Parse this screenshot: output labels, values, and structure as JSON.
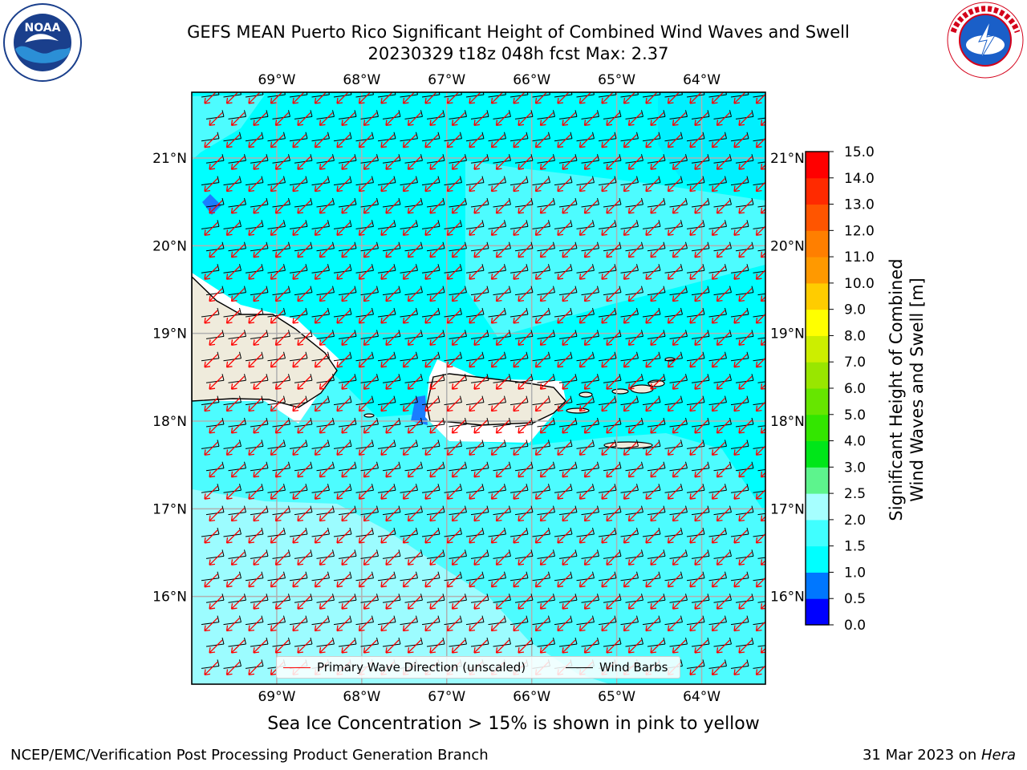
{
  "header": {
    "title_line1": "GEFS MEAN Puerto Rico Significant Height of Combined Wind Waves and Swell",
    "title_line2": "20230329 t18z 048h fcst   Max: 2.37"
  },
  "logos": {
    "left": {
      "text": "NOAA",
      "ring_text": "NATIONAL OCEANIC AND ATMOSPHERIC ADMINISTRATION · U.S. DEPARTMENT OF COMMERCE"
    },
    "right": {
      "ring_text": "NATIONAL WEATHER SERVICE"
    }
  },
  "footer": {
    "subtitle": "Sea Ice Concentration > 15% is shown in pink to yellow",
    "left": "NCEP/EMC/Verification Post Processing Product Generation Branch",
    "right_prefix": "31 Mar 2023 on ",
    "right_host": "Hera"
  },
  "legend": {
    "wave_label": "Primary Wave Direction (unscaled)",
    "barb_label": "Wind Barbs",
    "wave_color": "#ff0000",
    "barb_color": "#000000"
  },
  "chart_data": {
    "type": "heatmap",
    "title": "GEFS MEAN Puerto Rico Significant Height of Combined Wind Waves and Swell",
    "map": {
      "lon_range": [
        -70.0,
        -63.25
      ],
      "lat_range": [
        15.0,
        21.75
      ],
      "lon_ticks": [
        "69°W",
        "68°W",
        "67°W",
        "66°W",
        "65°W",
        "64°W"
      ],
      "lon_tick_values": [
        -69,
        -68,
        -67,
        -66,
        -65,
        -64
      ],
      "lat_ticks": [
        "16°N",
        "17°N",
        "18°N",
        "19°N",
        "20°N",
        "21°N"
      ],
      "lat_tick_values": [
        16,
        17,
        18,
        19,
        20,
        21
      ],
      "grid": true,
      "ocean_color": "#00ffff",
      "land_color": "#efebdc"
    },
    "colorbar": {
      "label": "Significant Height of Combined Wind Waves and Swell [m]",
      "label_line1": "Significant Height of Combined",
      "label_line2": "Wind Waves and Swell [m]",
      "ticks": [
        "0.0",
        "0.5",
        "1.0",
        "1.5",
        "2.0",
        "2.5",
        "3.0",
        "4.0",
        "5.0",
        "6.0",
        "7.0",
        "8.0",
        "9.0",
        "10.0",
        "11.0",
        "12.0",
        "13.0",
        "14.0",
        "15.0"
      ],
      "colors": [
        "#0000ff",
        "#0077ff",
        "#00ffff",
        "#40ffff",
        "#a6ffff",
        "#5df48d",
        "#00e619",
        "#33e600",
        "#66e600",
        "#99e600",
        "#ccee00",
        "#ffff00",
        "#ffcc00",
        "#ff9900",
        "#ff7f00",
        "#ff5500",
        "#ff2a00",
        "#ff0000"
      ]
    },
    "wave_direction_deg": 60,
    "wind_from_east": true,
    "max_value": 2.37
  }
}
